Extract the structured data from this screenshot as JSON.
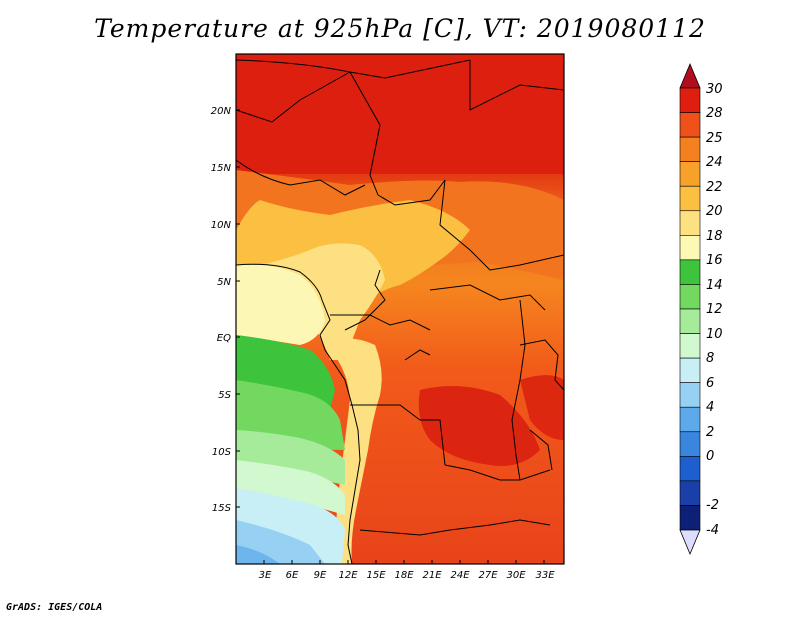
{
  "title": "Temperature at 925hPa [C], VT: 2019080112",
  "credit": "GrADS: IGES/COLA",
  "map": {
    "latitude_labels": [
      "20N",
      "15N",
      "10N",
      "5N",
      "EQ",
      "5S",
      "10S",
      "15S"
    ],
    "longitude_labels": [
      "3E",
      "6E",
      "9E",
      "12E",
      "15E",
      "18E",
      "21E",
      "24E",
      "27E",
      "30E",
      "33E"
    ],
    "extent": {
      "lon": [
        0,
        35.5
      ],
      "lat": [
        -19.5,
        25
      ]
    }
  },
  "colorbar": {
    "levels": [
      "30",
      "28",
      "25",
      "24",
      "22",
      "20",
      "18",
      "16",
      "14",
      "12",
      "10",
      "8",
      "6",
      "4",
      "2",
      "0",
      "-2",
      "-4"
    ],
    "colors": [
      "#e01e10",
      "#f0501a",
      "#f5801f",
      "#f8a12a",
      "#fbbf42",
      "#fde082",
      "#fdf8b3",
      "#3ec43c",
      "#72d860",
      "#a5eb9a",
      "#d2f8cf",
      "#c8eef6",
      "#96d1f4",
      "#5ea9ea",
      "#3a85de",
      "#1e5fd0",
      "#1b3fa8",
      "#0e1f78"
    ],
    "over_color": "#b10d1f",
    "under_color": "#ddddff"
  }
}
